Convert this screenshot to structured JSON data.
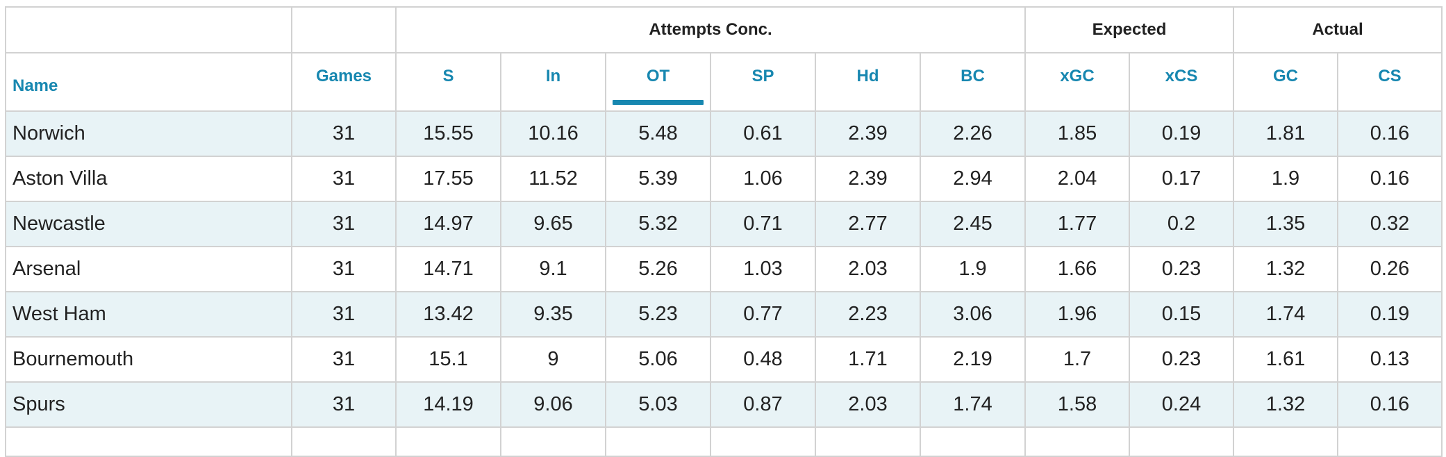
{
  "table": {
    "group_headers": [
      "",
      "",
      "Attempts Conc.",
      "Expected",
      "Actual"
    ],
    "columns": [
      "Name",
      "Games",
      "S",
      "In",
      "OT",
      "SP",
      "Hd",
      "BC",
      "xGC",
      "xCS",
      "GC",
      "CS"
    ],
    "sorted_column": "OT",
    "rows": [
      {
        "name": "Norwich",
        "games": "31",
        "s": "15.55",
        "in": "10.16",
        "ot": "5.48",
        "sp": "0.61",
        "hd": "2.39",
        "bc": "2.26",
        "xgc": "1.85",
        "xcs": "0.19",
        "gc": "1.81",
        "cs": "0.16"
      },
      {
        "name": "Aston Villa",
        "games": "31",
        "s": "17.55",
        "in": "11.52",
        "ot": "5.39",
        "sp": "1.06",
        "hd": "2.39",
        "bc": "2.94",
        "xgc": "2.04",
        "xcs": "0.17",
        "gc": "1.9",
        "cs": "0.16"
      },
      {
        "name": "Newcastle",
        "games": "31",
        "s": "14.97",
        "in": "9.65",
        "ot": "5.32",
        "sp": "0.71",
        "hd": "2.77",
        "bc": "2.45",
        "xgc": "1.77",
        "xcs": "0.2",
        "gc": "1.35",
        "cs": "0.32"
      },
      {
        "name": "Arsenal",
        "games": "31",
        "s": "14.71",
        "in": "9.1",
        "ot": "5.26",
        "sp": "1.03",
        "hd": "2.03",
        "bc": "1.9",
        "xgc": "1.66",
        "xcs": "0.23",
        "gc": "1.32",
        "cs": "0.26"
      },
      {
        "name": "West Ham",
        "games": "31",
        "s": "13.42",
        "in": "9.35",
        "ot": "5.23",
        "sp": "0.77",
        "hd": "2.23",
        "bc": "3.06",
        "xgc": "1.96",
        "xcs": "0.15",
        "gc": "1.74",
        "cs": "0.19"
      },
      {
        "name": "Bournemouth",
        "games": "31",
        "s": "15.1",
        "in": "9",
        "ot": "5.06",
        "sp": "0.48",
        "hd": "1.71",
        "bc": "2.19",
        "xgc": "1.7",
        "xcs": "0.23",
        "gc": "1.61",
        "cs": "0.13"
      },
      {
        "name": "Spurs",
        "games": "31",
        "s": "14.19",
        "in": "9.06",
        "ot": "5.03",
        "sp": "0.87",
        "hd": "2.03",
        "bc": "1.74",
        "xgc": "1.58",
        "xcs": "0.24",
        "gc": "1.32",
        "cs": "0.16"
      }
    ]
  }
}
